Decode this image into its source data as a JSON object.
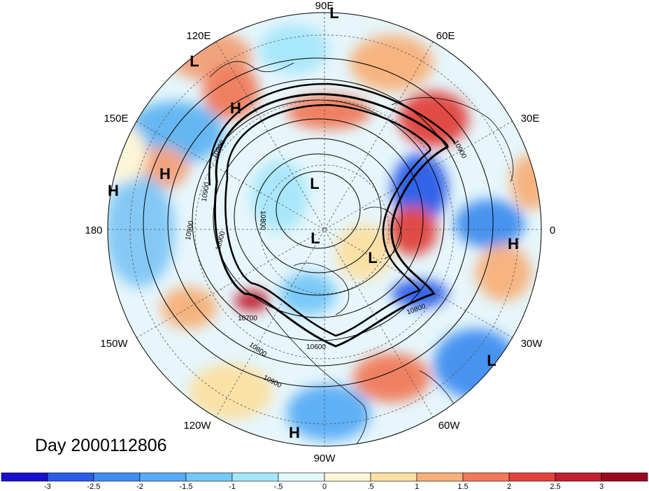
{
  "title": "Day 2000112806",
  "lon_labels": {
    "n": "90E",
    "ne": "60E",
    "e30": "30E",
    "nw": "120E",
    "w150": "150E",
    "w": "180",
    "e": "0",
    "sw150": "150W",
    "sw120": "120W",
    "s": "90W",
    "se60": "60W",
    "se30": "30W"
  },
  "pressure_centers": [
    {
      "label": "L",
      "name": "low-top"
    },
    {
      "label": "L",
      "name": "low-nw"
    },
    {
      "label": "H",
      "name": "high-nw"
    },
    {
      "label": "H",
      "name": "high-w1"
    },
    {
      "label": "H",
      "name": "high-w2"
    },
    {
      "label": "L",
      "name": "low-center-upper"
    },
    {
      "label": "L",
      "name": "low-center"
    },
    {
      "label": "L",
      "name": "low-center-right"
    },
    {
      "label": "H",
      "name": "high-east"
    },
    {
      "label": "L",
      "name": "low-se"
    },
    {
      "label": "H",
      "name": "high-south"
    }
  ],
  "contour_labels": [
    "10900",
    "10900",
    "10800",
    "10900",
    "10900",
    "10700",
    "10800",
    "10900",
    "10600",
    "10800",
    "10800",
    "10900"
  ],
  "colorbar": {
    "labels": [
      "-3",
      "-2.5",
      "-2",
      "-1.5",
      "-1",
      "-.5",
      "0",
      ".5",
      "1",
      "1.5",
      "2",
      "2.5",
      "3"
    ],
    "colors": [
      "#1a0fcf",
      "#2a5ce8",
      "#3f8ef0",
      "#58acf5",
      "#75c8f7",
      "#a6e6fa",
      "#e4f7fb",
      "#fdf6d6",
      "#fbe0a2",
      "#f7b07a",
      "#f07a5a",
      "#e1433c",
      "#c11e2e",
      "#9c0a1f"
    ]
  }
}
